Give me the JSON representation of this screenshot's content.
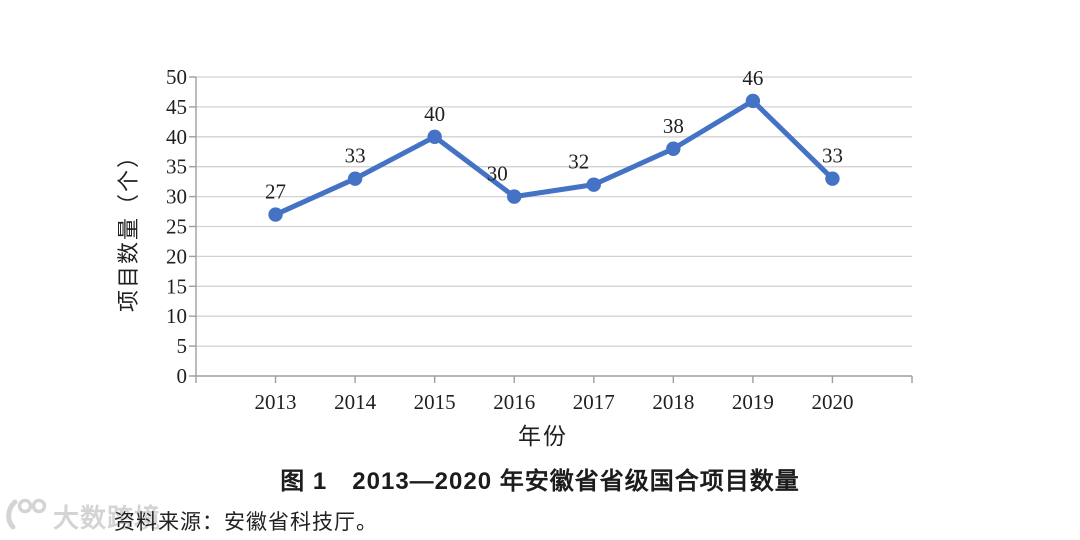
{
  "chart_data": {
    "type": "line",
    "categories": [
      "2013",
      "2014",
      "2015",
      "2016",
      "2017",
      "2018",
      "2019",
      "2020"
    ],
    "values": [
      27,
      33,
      40,
      30,
      32,
      38,
      46,
      33
    ],
    "title": "图 1　2013—2020 年安徽省省级国合项目数量",
    "xlabel": "年份",
    "ylabel": "项目数量（个）",
    "ylim": [
      0,
      50
    ],
    "ytick_step": 5,
    "grid": true,
    "legend": "none",
    "data_labels": true,
    "label_dx": [
      0,
      0,
      0,
      -17,
      -15,
      0,
      0,
      0
    ],
    "colors": {
      "line": "#4472C4",
      "marker": "#4472C4",
      "grid": "#d2d2d2",
      "axis": "#9e9e9e",
      "text": "#1f1f1f"
    }
  },
  "source_note": {
    "text": "资料来源：安徽省科技厅。"
  },
  "watermark": {
    "text": "大数跨境"
  }
}
